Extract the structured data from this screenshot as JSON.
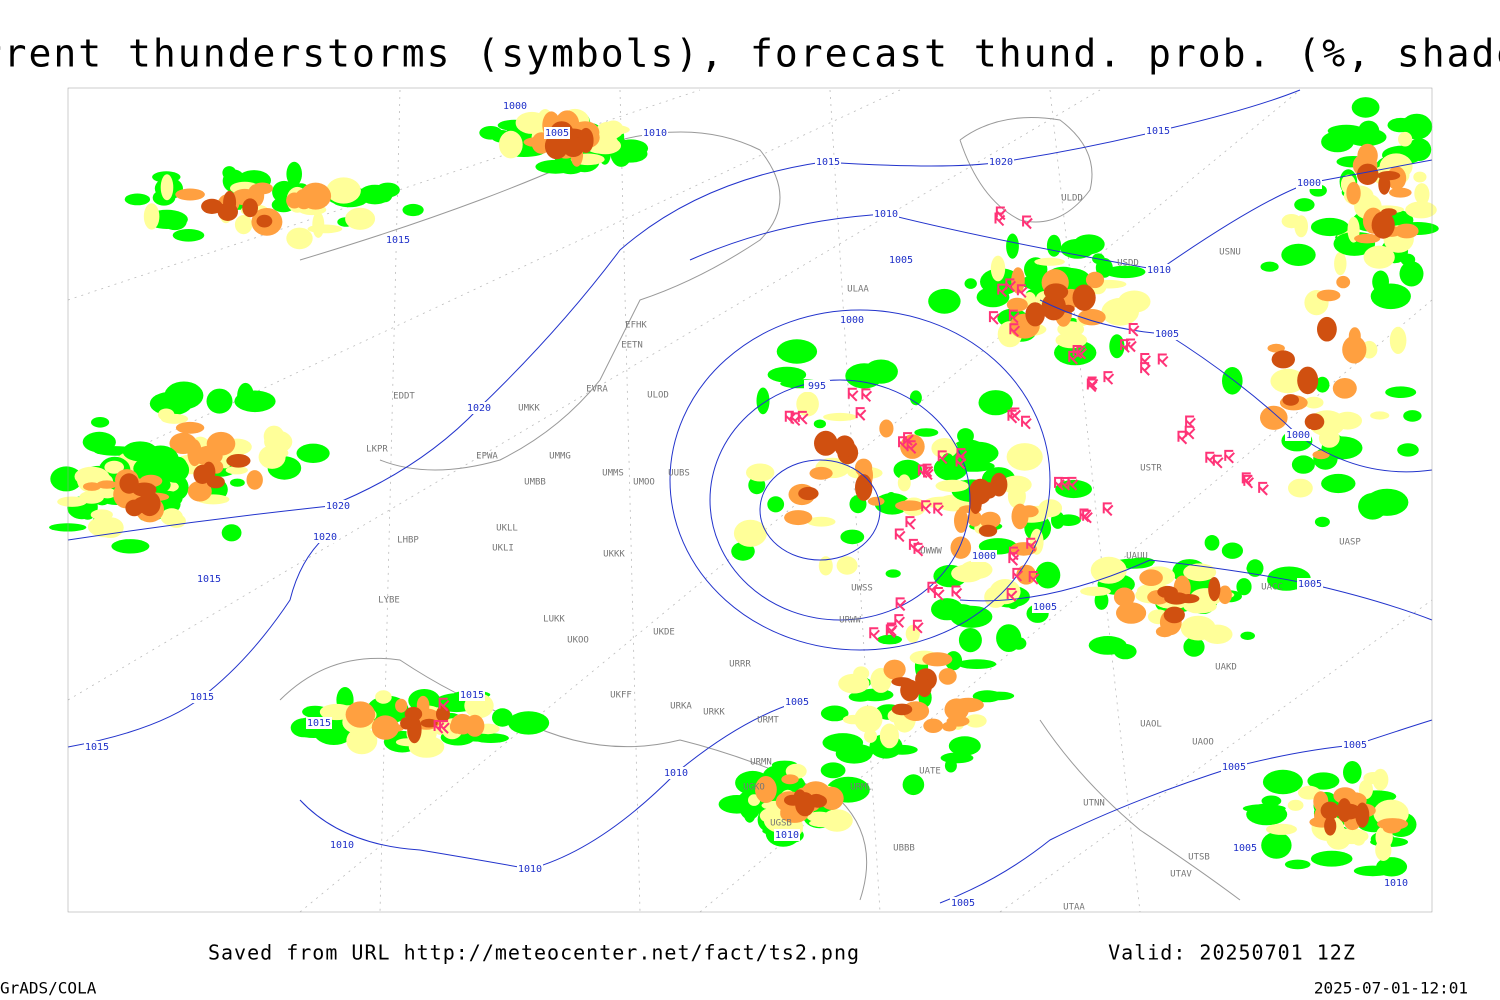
{
  "header": {
    "title": "Current thunderstorms (symbols), forecast thund. prob. (%, shaded)"
  },
  "map": {
    "isobar_labels": [
      "1000",
      "1005",
      "1010",
      "1015",
      "1015",
      "1020",
      "1015",
      "1010",
      "1005",
      "1010",
      "1000",
      "1000",
      "1005",
      "995",
      "1020",
      "1020",
      "1020",
      "1000",
      "1000",
      "1005",
      "1005",
      "1015",
      "1015",
      "1015",
      "1015",
      "1015",
      "1005",
      "1010",
      "1010",
      "1010",
      "1010",
      "1005",
      "1005",
      "1005",
      "1010",
      "1005"
    ],
    "station_labels": [
      "ULDD",
      "USDD",
      "USNU",
      "ULAA",
      "EFHK",
      "EETN",
      "EVRA",
      "ULOD",
      "EDDT",
      "UMKK",
      "EPWA",
      "UMMG",
      "UMMS",
      "UMOO",
      "UUBS",
      "UMBB",
      "UKLL",
      "UKLI",
      "LKPR",
      "LHBP",
      "UKKK",
      "LYBE",
      "LUKK",
      "UKOO",
      "UKDE",
      "URRR",
      "UKFF",
      "URKA",
      "URKK",
      "URMT",
      "URMN",
      "UGKO",
      "URML",
      "UGSB",
      "UBBB",
      "UTAA",
      "UTSB",
      "UTAV",
      "UTNN",
      "UAOO",
      "UAOL",
      "UATE",
      "UAKD",
      "UASP",
      "UACC",
      "UAUU",
      "USTR",
      "UWWW",
      "UWSS",
      "URWW"
    ]
  },
  "footer": {
    "source": "Saved from URL http://meteocenter.net/fact/ts2.png",
    "valid": "Valid: 20250701 12Z",
    "software": "GrADS/COLA",
    "timestamp": "2025-07-01-12:01"
  }
}
